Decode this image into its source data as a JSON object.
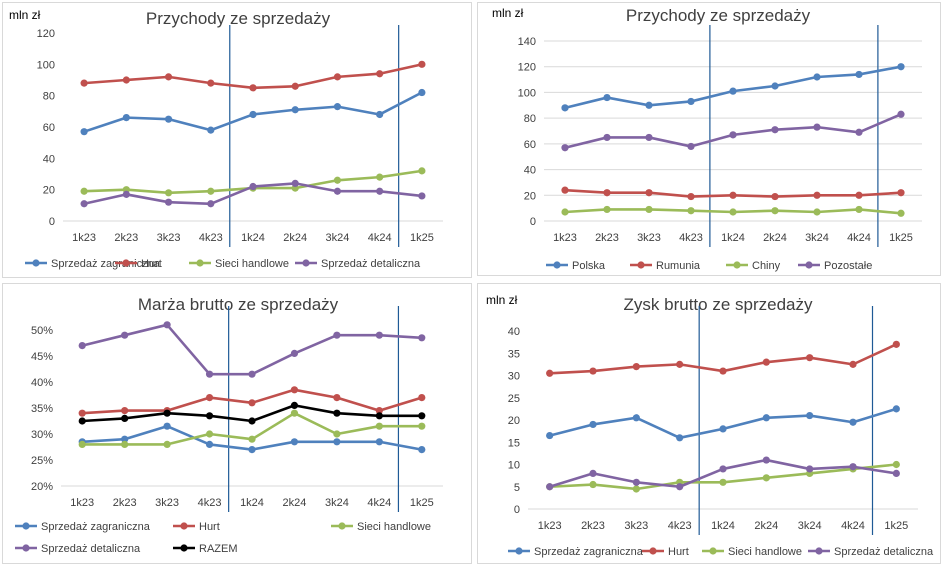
{
  "colors": {
    "blue": "#4F81BD",
    "red": "#C0504D",
    "green": "#9BBB59",
    "purple": "#8064A2",
    "black": "#000000",
    "vline": "#1F5A96",
    "grid": "#D9D9D9"
  },
  "chart_data": [
    {
      "type": "line",
      "title": "Przychody ze sprzedaży",
      "unit_label": "mln zł",
      "ylim": [
        0,
        120
      ],
      "yticks": [
        0,
        20,
        40,
        60,
        80,
        100,
        120
      ],
      "ytick_labels": [
        "0",
        "20",
        "40",
        "60",
        "80",
        "100",
        "120"
      ],
      "grid": false,
      "legend_position": "bottom",
      "categories": [
        "1k23",
        "2k23",
        "3k23",
        "4k23",
        "1k24",
        "2k24",
        "3k24",
        "4k24",
        "1k25"
      ],
      "vertical_markers_after": [
        "4k23",
        "4k24"
      ],
      "series": [
        {
          "name": "Sprzedaż zagraniczna",
          "color": "blue",
          "values": [
            57,
            66,
            65,
            58,
            68,
            71,
            73,
            68,
            82
          ]
        },
        {
          "name": "Hurt",
          "color": "red",
          "values": [
            88,
            90,
            92,
            88,
            85,
            86,
            92,
            94,
            100
          ]
        },
        {
          "name": "Sieci handlowe",
          "color": "green",
          "values": [
            19,
            20,
            18,
            19,
            21,
            21,
            26,
            28,
            32
          ]
        },
        {
          "name": "Sprzedaż detaliczna",
          "color": "purple",
          "values": [
            11,
            17,
            12,
            11,
            22,
            24,
            19,
            19,
            16
          ]
        }
      ]
    },
    {
      "type": "line",
      "title": "Przychody ze sprzedaży",
      "unit_label": "mln zł",
      "ylim": [
        0,
        140
      ],
      "yticks": [
        0,
        20,
        40,
        60,
        80,
        100,
        120,
        140
      ],
      "ytick_labels": [
        "0",
        "20",
        "40",
        "60",
        "80",
        "100",
        "120",
        "140"
      ],
      "grid": true,
      "legend_position": "bottom",
      "categories": [
        "1k23",
        "2k23",
        "3k23",
        "4k23",
        "1k24",
        "2k24",
        "3k24",
        "4k24",
        "1k25"
      ],
      "vertical_markers_after": [
        "4k23",
        "4k24"
      ],
      "series": [
        {
          "name": "Polska",
          "color": "blue",
          "values": [
            88,
            96,
            90,
            93,
            101,
            105,
            112,
            114,
            120
          ]
        },
        {
          "name": "Rumunia",
          "color": "red",
          "values": [
            24,
            22,
            22,
            19,
            20,
            19,
            20,
            20,
            22
          ]
        },
        {
          "name": "Chiny",
          "color": "green",
          "values": [
            7,
            9,
            9,
            8,
            7,
            8,
            7,
            9,
            6
          ]
        },
        {
          "name": "Pozostałe",
          "color": "purple",
          "values": [
            57,
            65,
            65,
            58,
            67,
            71,
            73,
            69,
            83
          ]
        }
      ]
    },
    {
      "type": "line",
      "title": "Marża brutto ze sprzedaży",
      "unit_label": "",
      "ylim": [
        20,
        50
      ],
      "yticks": [
        20,
        25,
        30,
        35,
        40,
        45,
        50
      ],
      "ytick_labels": [
        "20%",
        "25%",
        "30%",
        "35%",
        "40%",
        "45%",
        "50%"
      ],
      "grid": false,
      "legend_position": "bottom",
      "categories": [
        "1k23",
        "2k23",
        "3k23",
        "4k23",
        "1k24",
        "2k24",
        "3k24",
        "4k24",
        "1k25"
      ],
      "vertical_markers_after": [
        "4k23",
        "4k24"
      ],
      "series": [
        {
          "name": "Sprzedaż zagraniczna",
          "color": "blue",
          "values": [
            28.5,
            29,
            31.5,
            28,
            27,
            28.5,
            28.5,
            28.5,
            27
          ]
        },
        {
          "name": "Hurt",
          "color": "red",
          "values": [
            34,
            34.5,
            34.5,
            37,
            36,
            38.5,
            37,
            34.5,
            37
          ]
        },
        {
          "name": "Sieci handlowe",
          "color": "green",
          "values": [
            28,
            28,
            28,
            30,
            29,
            34,
            30,
            31.5,
            31.5
          ]
        },
        {
          "name": "Sprzedaż detaliczna",
          "color": "purple",
          "values": [
            47,
            49,
            51,
            41.5,
            41.5,
            45.5,
            49,
            49,
            48.5
          ]
        },
        {
          "name": "RAZEM",
          "color": "black",
          "values": [
            32.5,
            33,
            34,
            33.5,
            32.5,
            35.5,
            34,
            33.5,
            33.5
          ]
        }
      ]
    },
    {
      "type": "line",
      "title": "Zysk brutto ze sprzedaży",
      "unit_label": "mln zł",
      "ylim": [
        0,
        40
      ],
      "yticks": [
        0,
        5,
        10,
        15,
        20,
        25,
        30,
        35,
        40
      ],
      "ytick_labels": [
        "0",
        "5",
        "10",
        "15",
        "20",
        "25",
        "30",
        "35",
        "40"
      ],
      "grid": false,
      "legend_position": "bottom",
      "categories": [
        "1k23",
        "2k23",
        "3k23",
        "4k23",
        "1k24",
        "2k24",
        "3k24",
        "4k24",
        "1k25"
      ],
      "vertical_markers_after": [
        "4k23",
        "4k24"
      ],
      "series": [
        {
          "name": "Sprzedaż zagraniczna",
          "color": "blue",
          "values": [
            16.5,
            19,
            20.5,
            16,
            18,
            20.5,
            21,
            19.5,
            22.5
          ]
        },
        {
          "name": "Hurt",
          "color": "red",
          "values": [
            30.5,
            31,
            32,
            32.5,
            31,
            33,
            34,
            32.5,
            37
          ]
        },
        {
          "name": "Sieci handlowe",
          "color": "green",
          "values": [
            5,
            5.5,
            4.5,
            6,
            6,
            7,
            8,
            9,
            10
          ]
        },
        {
          "name": "Sprzedaż detaliczna",
          "color": "purple",
          "values": [
            5,
            8,
            6,
            5,
            9,
            11,
            9,
            9.5,
            8
          ]
        }
      ]
    }
  ]
}
